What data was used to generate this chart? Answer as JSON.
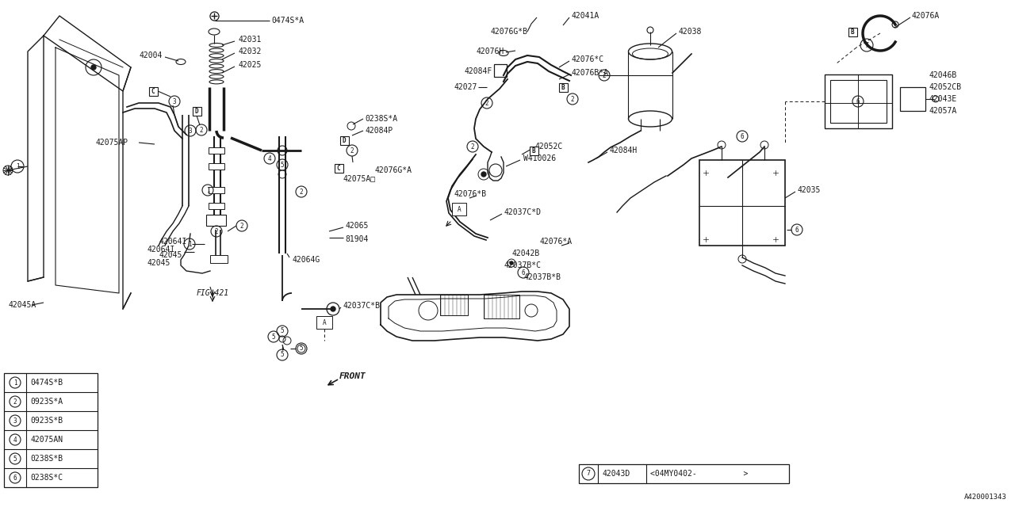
{
  "bg_color": "#ffffff",
  "line_color": "#1a1a1a",
  "fig_width": 12.8,
  "fig_height": 6.4,
  "legend_items": [
    {
      "num": "1",
      "code": "0474S*B"
    },
    {
      "num": "2",
      "code": "0923S*A"
    },
    {
      "num": "3",
      "code": "0923S*B"
    },
    {
      "num": "4",
      "code": "42075AN"
    },
    {
      "num": "5",
      "code": "0238S*B"
    },
    {
      "num": "6",
      "code": "0238S*C"
    }
  ],
  "callout7": {
    "num": "7",
    "code": "42043D",
    "note": "<04MY0402-",
    "right_bracket": ">"
  },
  "bottom_right_code": "A420001343"
}
